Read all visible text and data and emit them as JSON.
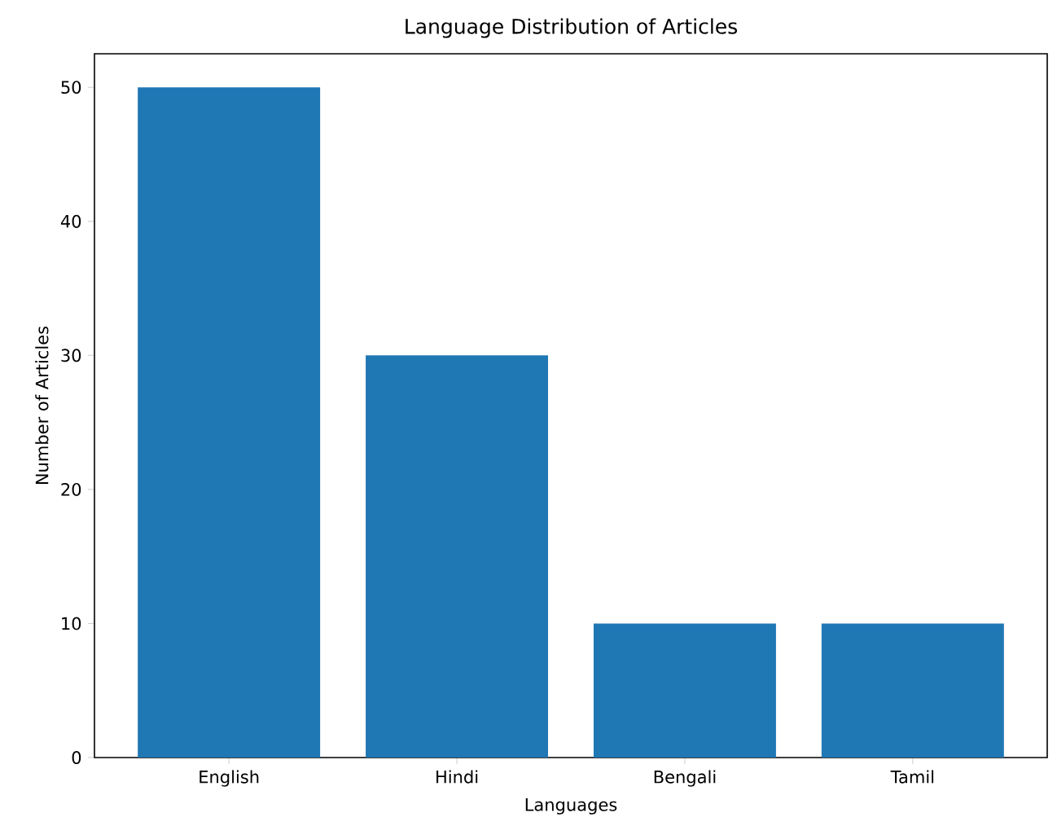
{
  "chart_data": {
    "type": "bar",
    "title": "Language Distribution of Articles",
    "xlabel": "Languages",
    "ylabel": "Number of Articles",
    "categories": [
      "English",
      "Hindi",
      "Bengali",
      "Tamil"
    ],
    "values": [
      50,
      30,
      10,
      10
    ],
    "color": "#1f77b4",
    "ylim": [
      0,
      52.5
    ],
    "yticks": [
      0,
      10,
      20,
      30,
      40,
      50
    ]
  }
}
